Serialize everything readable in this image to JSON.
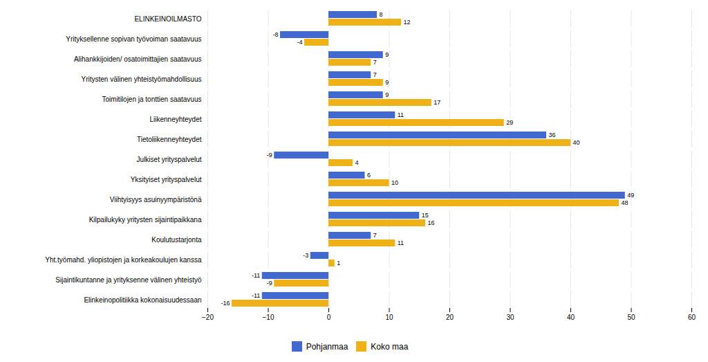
{
  "chart_data": {
    "type": "bar",
    "orientation": "horizontal",
    "categories": [
      "ELINKEINOILMASTO",
      "Yrityksellenne sopivan työvoiman saatavuus",
      "Alihankkijoiden/ osatoimittajien saatavuus",
      "Yritysten välinen yhteistyömahdollisuus",
      "Toimitilojen ja tonttien saatavuus",
      "Liikenneyhteydet",
      "Tietoliikenneyhteydet",
      "Julkiset yrityspalvelut",
      "Yksityiset yrityspalvelut",
      "Viihtyisyys asuinyympäristönä",
      "Kilpailukyky yritysten sijaintipaikkana",
      "Koulutustarjonta",
      "Yht.työmahd. yliopistojen ja korkeakoulujen kanssa",
      "Sijaintikuntanne ja yrityksenne välinen yhteistyö",
      "Elinkeinopolitiikka kokonaisuudessaan"
    ],
    "series": [
      {
        "name": "Pohjanmaa",
        "values": [
          8,
          -8,
          9,
          7,
          9,
          11,
          36,
          -9,
          6,
          49,
          15,
          7,
          -3,
          -11,
          -11
        ]
      },
      {
        "name": "Koko maa",
        "values": [
          12,
          -4,
          7,
          9,
          17,
          29,
          40,
          4,
          10,
          48,
          16,
          11,
          1,
          -9,
          -16
        ]
      }
    ],
    "xlim": [
      -20,
      60
    ],
    "xticks": [
      -20,
      -10,
      0,
      10,
      20,
      30,
      40,
      50,
      60
    ],
    "grid": true,
    "data_labels": true,
    "legend": "bottom"
  }
}
